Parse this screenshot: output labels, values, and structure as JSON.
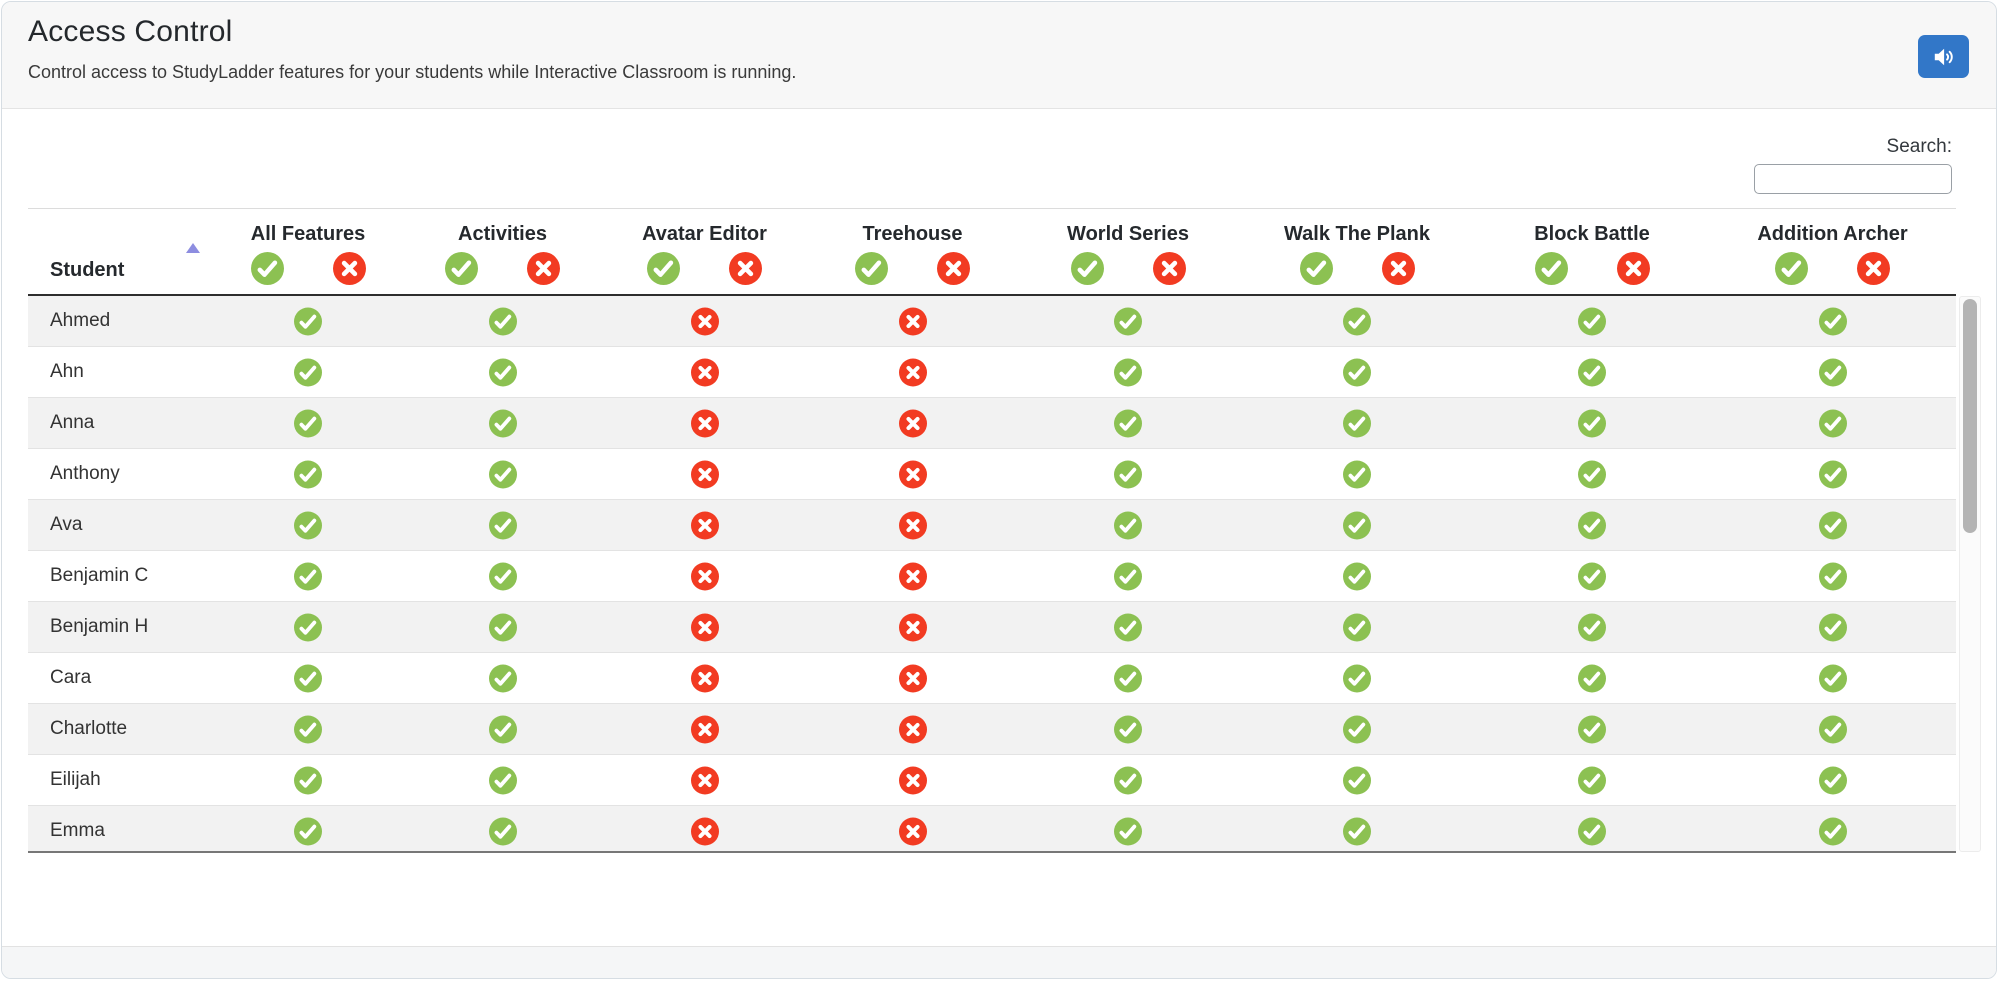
{
  "colors": {
    "allow_green": "#8cc152",
    "deny_red": "#f23b22",
    "sound_button_blue": "#3277c8",
    "sort_arrow_purple": "#8d8de0",
    "header_bar_bg": "#f7f7f7"
  },
  "header": {
    "title": "Access Control",
    "subtitle": "Control access to StudyLadder features for your students while Interactive Classroom is running.",
    "sound_button_icon": "speaker-icon"
  },
  "search": {
    "label": "Search:",
    "value": "",
    "placeholder": ""
  },
  "table": {
    "student_header": "Student",
    "sort_state": "ascending",
    "columns": [
      "All Features",
      "Activities",
      "Avatar Editor",
      "Treehouse",
      "World Series",
      "Walk The Plank",
      "Block Battle",
      "Addition Archer"
    ],
    "header_icons": {
      "allow": "check-icon",
      "deny": "x-icon"
    },
    "rows": [
      {
        "name": "Ahmed",
        "access": [
          "allow",
          "allow",
          "deny",
          "deny",
          "allow",
          "allow",
          "allow",
          "allow"
        ]
      },
      {
        "name": "Ahn",
        "access": [
          "allow",
          "allow",
          "deny",
          "deny",
          "allow",
          "allow",
          "allow",
          "allow"
        ]
      },
      {
        "name": "Anna",
        "access": [
          "allow",
          "allow",
          "deny",
          "deny",
          "allow",
          "allow",
          "allow",
          "allow"
        ]
      },
      {
        "name": "Anthony",
        "access": [
          "allow",
          "allow",
          "deny",
          "deny",
          "allow",
          "allow",
          "allow",
          "allow"
        ]
      },
      {
        "name": "Ava",
        "access": [
          "allow",
          "allow",
          "deny",
          "deny",
          "allow",
          "allow",
          "allow",
          "allow"
        ]
      },
      {
        "name": "Benjamin C",
        "access": [
          "allow",
          "allow",
          "deny",
          "deny",
          "allow",
          "allow",
          "allow",
          "allow"
        ]
      },
      {
        "name": "Benjamin H",
        "access": [
          "allow",
          "allow",
          "deny",
          "deny",
          "allow",
          "allow",
          "allow",
          "allow"
        ]
      },
      {
        "name": "Cara",
        "access": [
          "allow",
          "allow",
          "deny",
          "deny",
          "allow",
          "allow",
          "allow",
          "allow"
        ]
      },
      {
        "name": "Charlotte",
        "access": [
          "allow",
          "allow",
          "deny",
          "deny",
          "allow",
          "allow",
          "allow",
          "allow"
        ]
      },
      {
        "name": "Eilijah",
        "access": [
          "allow",
          "allow",
          "deny",
          "deny",
          "allow",
          "allow",
          "allow",
          "allow"
        ]
      },
      {
        "name": "Emma",
        "access": [
          "allow",
          "allow",
          "deny",
          "deny",
          "allow",
          "allow",
          "allow",
          "allow"
        ]
      }
    ]
  }
}
